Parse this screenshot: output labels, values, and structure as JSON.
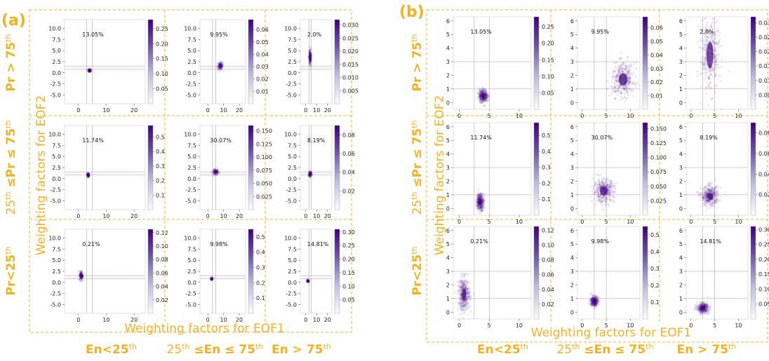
{
  "panels": [
    {
      "label": "(a)"
    },
    {
      "label": "(b)"
    }
  ],
  "row_labels": [
    {
      "pre": "Pr > 75",
      "sup": "th",
      "post": ""
    },
    {
      "pre": "25",
      "sup": "th",
      "post": " ≤Pr ≤ 75",
      "sup2": "th"
    },
    {
      "pre": "Pr<25",
      "sup": "th",
      "post": ""
    }
  ],
  "col_labels": [
    {
      "pre": "En<25",
      "sup": "th",
      "post": ""
    },
    {
      "pre": "25",
      "sup": "th",
      "post": " ≤En ≤ 75",
      "sup2": "th"
    },
    {
      "pre": "En > 75",
      "sup": "th",
      "post": ""
    }
  ],
  "ylabel": "Weighting factors for EOF2",
  "xlabel": "Weighting factors for EOF1",
  "colors": {
    "accent": "#f2b125",
    "cmap_low": "#ffffff",
    "cmap_high": "#3f007d"
  },
  "chart_data": [
    {
      "type": "heatmap",
      "panel": "(a)",
      "xlabel": "Weighting factors for EOF1",
      "ylabel": "Weighting factors for EOF2",
      "xlim": [
        -5,
        24
      ],
      "ylim": [
        -7,
        12
      ],
      "xticks": [
        0,
        10,
        20
      ],
      "yticks": [
        -5.0,
        -2.5,
        0.0,
        2.5,
        5.0,
        7.5,
        10.0
      ],
      "subplots": [
        {
          "row": 0,
          "col": 0,
          "pct": "13.05%",
          "center": [
            4,
            0.5
          ],
          "spread": [
            0.6,
            0.4
          ],
          "colorbar_ticks": [
            "0.25",
            "0.20",
            "0.15",
            "0.10",
            "0.05"
          ],
          "cb_max": 0.28
        },
        {
          "row": 0,
          "col": 1,
          "pct": "9.95%",
          "center": [
            8,
            1.5
          ],
          "spread": [
            2.0,
            0.9
          ],
          "colorbar_ticks": [
            "0.06",
            "0.05",
            "0.04",
            "0.03",
            "0.02",
            "0.01"
          ],
          "cb_max": 0.068
        },
        {
          "row": 0,
          "col": 2,
          "pct": "2.0%",
          "center": [
            4,
            3.5
          ],
          "spread": [
            1.2,
            2.2
          ],
          "colorbar_ticks": [
            "0.030",
            "0.025",
            "0.020",
            "0.015",
            "0.010",
            "0.005"
          ],
          "cb_max": 0.032
        },
        {
          "row": 1,
          "col": 0,
          "pct": "11.74%",
          "center": [
            3.5,
            0.8
          ],
          "spread": [
            0.5,
            0.5
          ],
          "colorbar_ticks": [
            "0.5",
            "0.4",
            "0.3",
            "0.2",
            "0.1"
          ],
          "cb_max": 0.58
        },
        {
          "row": 1,
          "col": 1,
          "pct": "30.07%",
          "center": [
            5,
            1.5
          ],
          "spread": [
            2.0,
            0.7
          ],
          "colorbar_ticks": [
            "0.150",
            "0.125",
            "0.100",
            "0.075",
            "0.050",
            "0.025"
          ],
          "cb_max": 0.16
        },
        {
          "row": 1,
          "col": 2,
          "pct": "8.19%",
          "center": [
            4,
            1.0
          ],
          "spread": [
            1.5,
            0.7
          ],
          "colorbar_ticks": [
            "0.08",
            "0.06",
            "0.04",
            "0.02"
          ],
          "cb_max": 0.09
        },
        {
          "row": 2,
          "col": 0,
          "pct": "0.21%",
          "center": [
            1,
            1.5
          ],
          "spread": [
            0.8,
            1.2
          ],
          "colorbar_ticks": [
            "0.12",
            "0.10",
            "0.08",
            "0.06",
            "0.04",
            "0.02"
          ],
          "cb_max": 0.125
        },
        {
          "row": 2,
          "col": 1,
          "pct": "9.98%",
          "center": [
            2.5,
            0.8
          ],
          "spread": [
            0.6,
            0.3
          ],
          "colorbar_ticks": [
            "0.5",
            "0.4",
            "0.3",
            "0.2",
            "0.1"
          ],
          "cb_max": 0.55
        },
        {
          "row": 2,
          "col": 2,
          "pct": "14.81%",
          "center": [
            2,
            0.3
          ],
          "spread": [
            1.0,
            0.3
          ],
          "colorbar_ticks": [
            "0.30",
            "0.25",
            "0.20",
            "0.15",
            "0.10",
            "0.05"
          ],
          "cb_max": 0.31
        }
      ]
    },
    {
      "type": "heatmap",
      "panel": "(b)",
      "xlabel": "Weighting factors for EOF1",
      "ylabel": "Weighting factors for EOF2",
      "xlim": [
        -1,
        12
      ],
      "ylim": [
        -0.5,
        6.3
      ],
      "xticks": [
        0,
        5,
        10
      ],
      "yticks": [
        0,
        1,
        2,
        3,
        4,
        5,
        6
      ],
      "subplots": [
        {
          "row": 0,
          "col": 0,
          "pct": "13.05%",
          "center": [
            4,
            0.5
          ],
          "spread": [
            0.6,
            0.4
          ],
          "colorbar_ticks": [
            "0.25",
            "0.20",
            "0.15",
            "0.10",
            "0.05"
          ],
          "cb_max": 0.28
        },
        {
          "row": 0,
          "col": 1,
          "pct": "9.95%",
          "center": [
            8.5,
            1.7
          ],
          "spread": [
            2.0,
            1.0
          ],
          "colorbar_ticks": [
            "0.06",
            "0.05",
            "0.04",
            "0.03",
            "0.02",
            "0.01"
          ],
          "cb_max": 0.068
        },
        {
          "row": 0,
          "col": 2,
          "pct": "2.0%",
          "center": [
            4,
            3.5
          ],
          "spread": [
            1.6,
            2.2
          ],
          "colorbar_ticks": [
            "0.030",
            "0.025",
            "0.020",
            "0.015",
            "0.010",
            "0.005"
          ],
          "cb_max": 0.032
        },
        {
          "row": 1,
          "col": 0,
          "pct": "11.74%",
          "center": [
            3.5,
            0.5
          ],
          "spread": [
            0.5,
            0.5
          ],
          "colorbar_ticks": [
            "0.5",
            "0.4",
            "0.3",
            "0.2",
            "0.1"
          ],
          "cb_max": 0.58
        },
        {
          "row": 1,
          "col": 1,
          "pct": "30.07%",
          "center": [
            4.5,
            1.3
          ],
          "spread": [
            1.8,
            0.7
          ],
          "colorbar_ticks": [
            "0.150",
            "0.125",
            "0.100",
            "0.075",
            "0.050",
            "0.025"
          ],
          "cb_max": 0.16
        },
        {
          "row": 1,
          "col": 2,
          "pct": "8.19%",
          "center": [
            4,
            0.9
          ],
          "spread": [
            1.5,
            0.6
          ],
          "colorbar_ticks": [
            "0.08",
            "0.06",
            "0.04",
            "0.02"
          ],
          "cb_max": 0.09
        },
        {
          "row": 2,
          "col": 0,
          "pct": "0.21%",
          "center": [
            0.8,
            1.3
          ],
          "spread": [
            0.8,
            1.0
          ],
          "colorbar_ticks": [
            "0.12",
            "0.10",
            "0.08",
            "0.06",
            "0.04",
            "0.02"
          ],
          "cb_max": 0.125
        },
        {
          "row": 2,
          "col": 1,
          "pct": "9.98%",
          "center": [
            2.5,
            0.8
          ],
          "spread": [
            0.6,
            0.3
          ],
          "colorbar_ticks": [
            "0.5",
            "0.4",
            "0.3",
            "0.2",
            "0.1"
          ],
          "cb_max": 0.55
        },
        {
          "row": 2,
          "col": 2,
          "pct": "14.81%",
          "center": [
            2.5,
            0.3
          ],
          "spread": [
            1.0,
            0.3
          ],
          "colorbar_ticks": [
            "0.30",
            "0.25",
            "0.20",
            "0.15",
            "0.10",
            "0.05"
          ],
          "cb_max": 0.31
        }
      ]
    }
  ]
}
